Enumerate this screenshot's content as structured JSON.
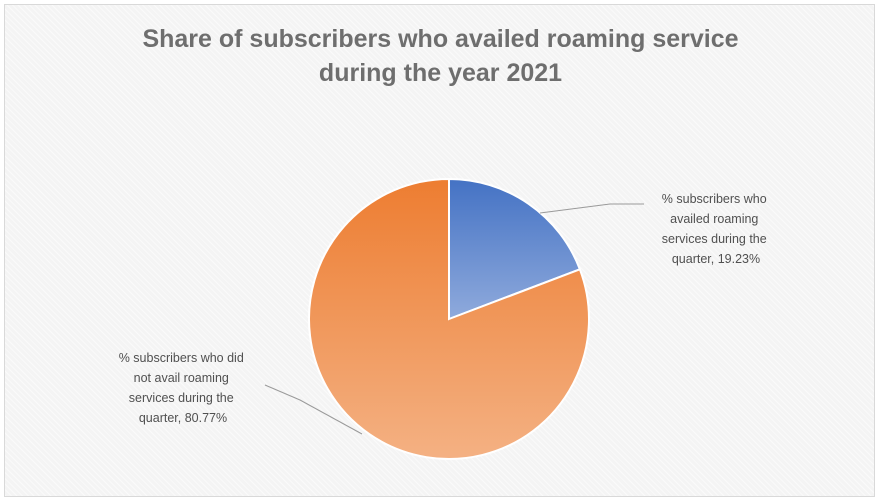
{
  "chart_data": {
    "type": "pie",
    "title_lines": [
      "Share of subscribers who availed roaming service",
      "during the year 2021"
    ],
    "slices": [
      {
        "label_lines": [
          "% subscribers who",
          "availed roaming",
          "services during the",
          "quarter, 19.23%"
        ],
        "value": 19.23,
        "color_top": "#4472c4",
        "color_bottom": "#8faadc"
      },
      {
        "label_lines": [
          "% subscribers who did",
          "not avail roaming",
          "services during the",
          "quarter, 80.77%"
        ],
        "value": 80.77,
        "color_top": "#ed7d31",
        "color_bottom": "#f4b183"
      }
    ],
    "legend": "none",
    "data_labels": "outside with leader lines"
  }
}
